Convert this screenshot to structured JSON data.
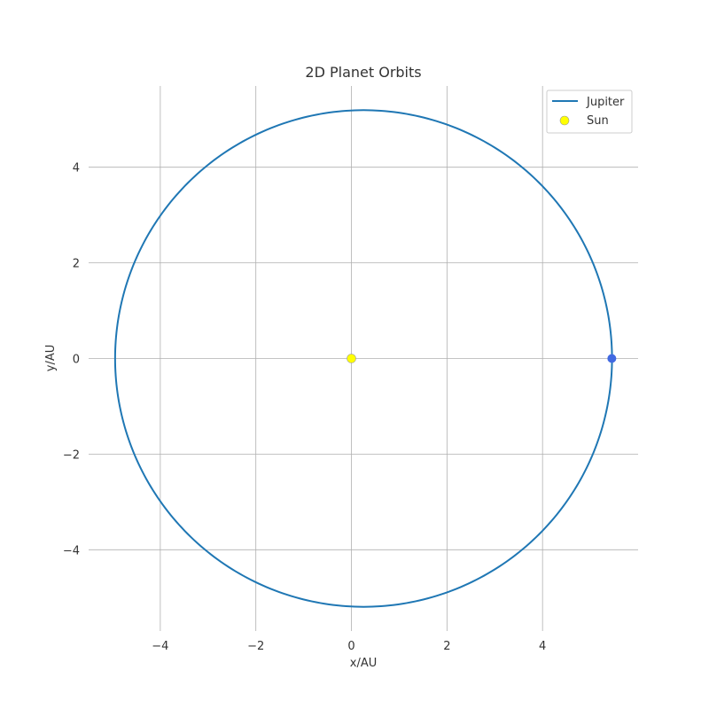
{
  "chart_data": {
    "type": "line",
    "title": "2D Planet Orbits",
    "xlabel": "x/AU",
    "ylabel": "y/AU",
    "xlim": [
      -5.5,
      6.0
    ],
    "ylim": [
      -5.7,
      5.7
    ],
    "xticks": [
      -4,
      -2,
      0,
      2,
      4
    ],
    "yticks": [
      -4,
      -2,
      0,
      2,
      4
    ],
    "xtick_labels": [
      "−4",
      "−2",
      "0",
      "2",
      "4"
    ],
    "ytick_labels": [
      "−4",
      "−2",
      "0",
      "2",
      "4"
    ],
    "grid": true,
    "legend_position": "top-right",
    "series": [
      {
        "name": "Jupiter",
        "kind": "orbit",
        "color": "#1f77b4",
        "semi_major_axis": 5.2,
        "eccentricity": 0.0489,
        "perihelion_x": 5.45,
        "current_position": [
          5.45,
          0
        ],
        "marker_color": "#4169e1"
      },
      {
        "name": "Sun",
        "kind": "point",
        "color": "#ffff00",
        "x": 0,
        "y": 0
      }
    ]
  }
}
